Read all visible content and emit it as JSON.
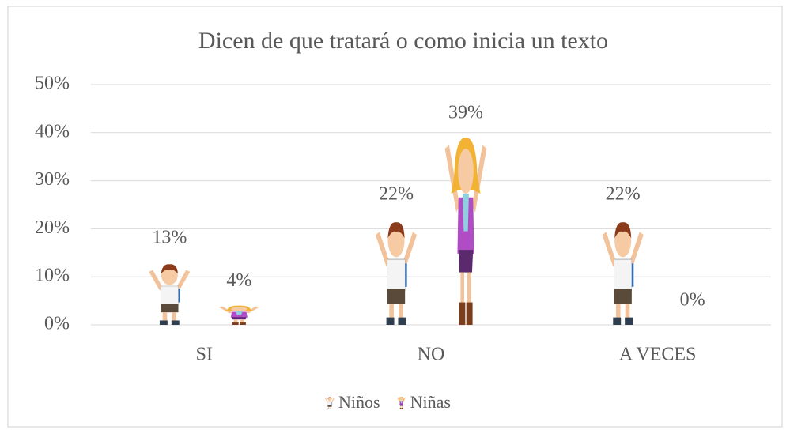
{
  "chart_data": {
    "type": "bar",
    "title": "Dicen de que tratará o como inicia  un texto",
    "categories": [
      "SI",
      "NO",
      "A VECES"
    ],
    "series": [
      {
        "name": "Niños",
        "color": "#2e6db4",
        "values": [
          13,
          22,
          22
        ],
        "value_labels": [
          "13%",
          "22%",
          "22%"
        ]
      },
      {
        "name": "Niñas",
        "color": "#b04cc4",
        "values": [
          4,
          39,
          0
        ],
        "value_labels": [
          "4%",
          "39%",
          "0%"
        ]
      }
    ],
    "ylim": [
      0,
      50
    ],
    "yticks": [
      {
        "value": 0,
        "label": "0%"
      },
      {
        "value": 10,
        "label": "10%"
      },
      {
        "value": 20,
        "label": "20%"
      },
      {
        "value": 30,
        "label": "30%"
      },
      {
        "value": 40,
        "label": "40%"
      },
      {
        "value": 50,
        "label": "50%"
      }
    ],
    "grid": true,
    "legend": "bottom"
  }
}
